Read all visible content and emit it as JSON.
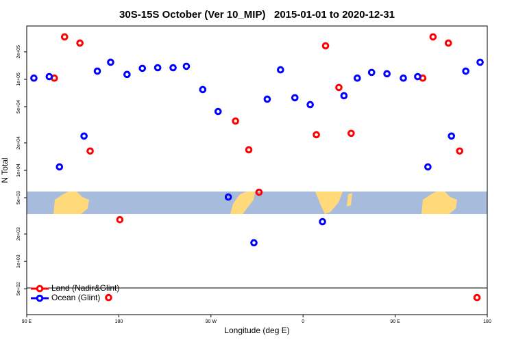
{
  "chart_data": {
    "type": "scatter",
    "title": "30S-15S October (Ver 10_MIP)   2015-01-01 to 2020-12-31",
    "x_label": "Longitude (deg E)",
    "y_label": "N Total",
    "xlim": [
      90,
      540
    ],
    "xticks": [
      {
        "value": 90,
        "label": "90 E"
      },
      180,
      {
        "value": 270,
        "label": "90 W"
      },
      {
        "value": 360,
        "label": "0"
      },
      {
        "value": 450,
        "label": "90 E"
      },
      {
        "value": 540,
        "label": "180"
      }
    ],
    "ylim": [
      260,
      385000
    ],
    "ylog": true,
    "yticks": [
      {
        "value": 500,
        "label": "5e+02"
      },
      {
        "value": 1000,
        "label": "1e+03"
      },
      {
        "value": 2000,
        "label": "2e+03"
      },
      {
        "value": 5000,
        "label": "5e+03"
      },
      {
        "value": 10000,
        "label": "1e+04"
      },
      {
        "value": 20000,
        "label": "2e+04"
      },
      {
        "value": 50000,
        "label": "5e+04"
      },
      {
        "value": 100000,
        "label": "1e+05"
      },
      {
        "value": 200000,
        "label": "2e+05"
      }
    ],
    "legend": "bottom-left",
    "series": [
      {
        "name": "Land (Nadir&Glint)",
        "color": "#ff0000",
        "x": [
          117,
          127,
          142,
          152,
          170,
          181,
          294,
          307,
          317,
          373,
          382,
          395,
          407,
          477,
          487,
          502,
          513,
          530
        ],
        "values": [
          103000,
          292000,
          250000,
          16300,
          400,
          2870,
          34800,
          16800,
          5750,
          24600,
          233000,
          81300,
          25500,
          103000,
          292000,
          250000,
          16300,
          400
        ]
      },
      {
        "name": "Ocean (Glint)",
        "color": "#0000ff",
        "x": [
          97,
          112,
          122,
          146,
          159,
          172,
          188,
          203,
          218,
          233,
          246,
          262,
          277,
          287,
          312,
          325,
          338,
          352,
          367,
          379,
          400,
          413,
          427,
          442,
          458,
          472,
          482,
          505,
          519,
          533
        ],
        "values": [
          103000,
          107000,
          10900,
          23800,
          123000,
          154000,
          113000,
          132000,
          134000,
          134000,
          139000,
          77100,
          44300,
          5090,
          1600,
          60500,
          127000,
          62700,
          52700,
          2730,
          66000,
          103000,
          119000,
          115000,
          103000,
          107000,
          10900,
          23800,
          123000,
          154000
        ]
      }
    ]
  }
}
